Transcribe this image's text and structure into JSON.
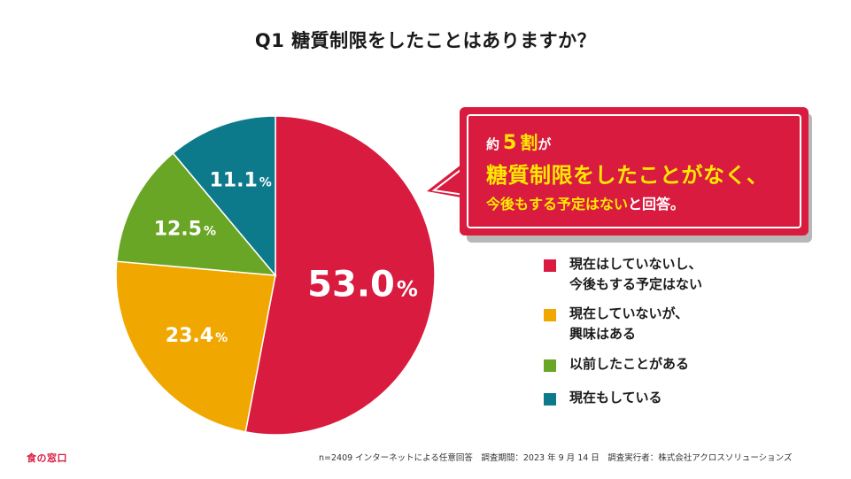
{
  "title": "Q1 糖質制限をしたことはありますか？",
  "chart_data": {
    "type": "pie",
    "title": "Q1 糖質制限をしたことはありますか？",
    "categories": [
      "現在はしていないし、今後もする予定はない",
      "現在していないが、興味はある",
      "以前したことがある",
      "現在もしている"
    ],
    "values": [
      53.0,
      23.4,
      12.5,
      11.1
    ],
    "value_labels": [
      "53.0",
      "23.4",
      "12.5",
      "11.1"
    ],
    "unit": "%",
    "colors": [
      "#d81b3f",
      "#f0a800",
      "#6aa626",
      "#0d7a8c"
    ],
    "start_angle_deg": 0,
    "direction": "clockwise",
    "legend_position": "right"
  },
  "legend": [
    {
      "label": "現在はしていないし、\n今後もする予定はない",
      "color": "#d81b3f"
    },
    {
      "label": "現在していないが、\n興味はある",
      "color": "#f0a800"
    },
    {
      "label": "以前したことがある",
      "color": "#6aa626"
    },
    {
      "label": "現在もしている",
      "color": "#0d7a8c"
    }
  ],
  "callout": {
    "prefix": "約",
    "number": "5",
    "unit": "割",
    "suffix": "が",
    "line2": "糖質制限をしたことがなく、",
    "line3_highlight": "今後もする予定はない",
    "line3_rest": "と回答。"
  },
  "footer": "n=2409 インターネットによる任意回答　調査期間：2023 年 9 月 14 日　調査実行者：株式会社アクロスソリューションズ",
  "logo": "食の窓口"
}
